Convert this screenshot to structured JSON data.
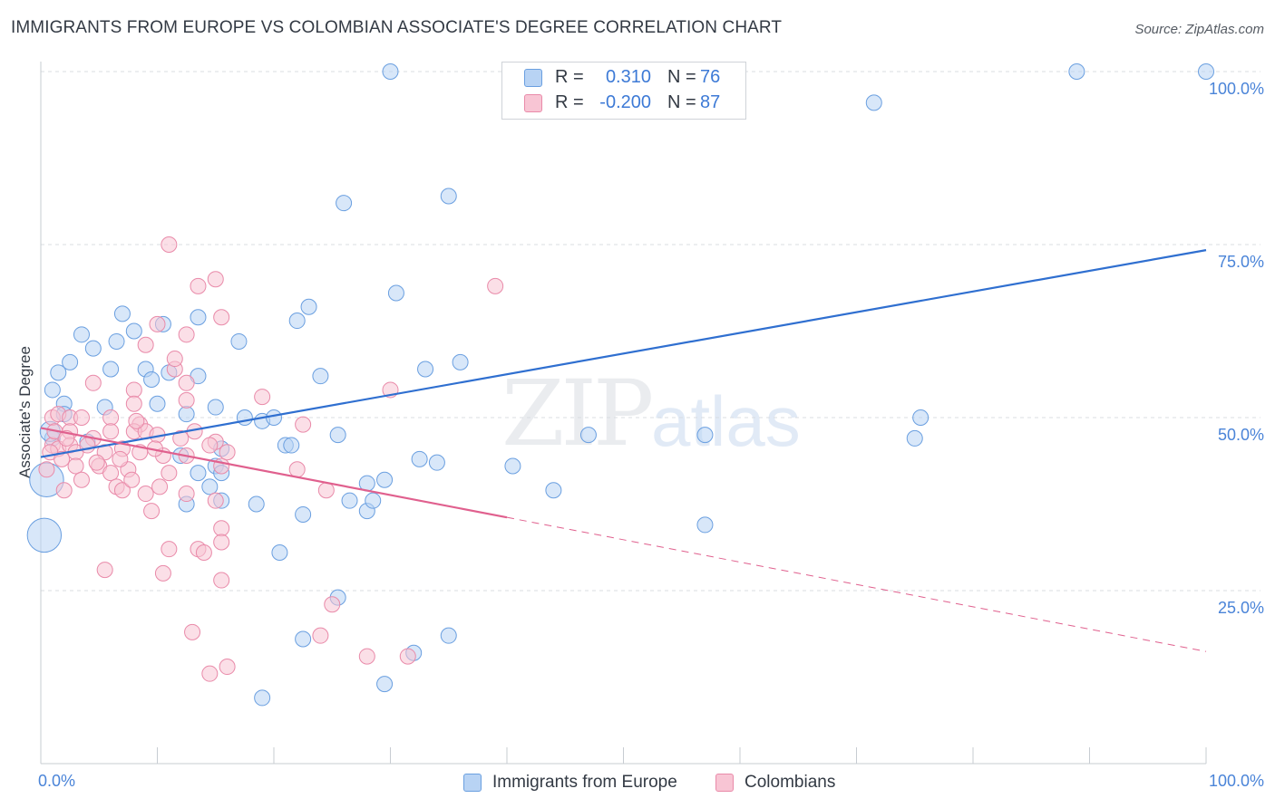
{
  "title": "IMMIGRANTS FROM EUROPE VS COLOMBIAN ASSOCIATE'S DEGREE CORRELATION CHART",
  "source": "Source: ZipAtlas.com",
  "watermark": {
    "zip": "ZIP",
    "atlas": "atlas"
  },
  "legend": {
    "r_label": "R =",
    "n_label": "N =",
    "blue": {
      "r": "0.310",
      "n": "76"
    },
    "pink": {
      "r": "-0.200",
      "n": "87"
    }
  },
  "bottom_legend": {
    "blue": "Immigrants from Europe",
    "pink": "Colombians"
  },
  "colors": {
    "blue_fill": "#b8d3f4",
    "blue_stroke": "#6a9fe0",
    "blue_line": "#2f6fd0",
    "pink_fill": "#f8c5d4",
    "pink_stroke": "#e98aa9",
    "pink_line": "#e0608e",
    "grid": "#d8dce1",
    "tick_text": "#4a84d8"
  },
  "chart_data": {
    "type": "scatter",
    "title": "IMMIGRANTS FROM EUROPE VS COLOMBIAN ASSOCIATE'S DEGREE CORRELATION CHART",
    "xlabel": "",
    "ylabel": "Associate's Degree",
    "xlim": [
      0,
      100
    ],
    "ylim": [
      0,
      100
    ],
    "x_tick_labels": [
      "0.0%",
      "100.0%"
    ],
    "y_tick_labels": [
      "25.0%",
      "50.0%",
      "75.0%",
      "100.0%"
    ],
    "y_ticks": [
      25,
      50,
      75,
      100
    ],
    "series": [
      {
        "name": "Immigrants from Europe",
        "r": 0.31,
        "n": 76,
        "trend": {
          "x0": 0,
          "y0": 44.3,
          "x1": 100,
          "y1": 74.2,
          "dash_from": null
        },
        "points": [
          [
            30,
            100
          ],
          [
            88.9,
            100
          ],
          [
            100,
            100
          ],
          [
            71.5,
            95.5
          ],
          [
            26,
            81
          ],
          [
            35,
            82
          ],
          [
            30.5,
            68
          ],
          [
            23,
            66
          ],
          [
            22,
            64
          ],
          [
            13.5,
            64.5
          ],
          [
            10.5,
            63.5
          ],
          [
            7,
            65
          ],
          [
            8,
            62.5
          ],
          [
            6.5,
            61
          ],
          [
            3.5,
            62
          ],
          [
            4.5,
            60
          ],
          [
            2.5,
            58
          ],
          [
            17,
            61
          ],
          [
            1.5,
            56.5
          ],
          [
            6,
            57
          ],
          [
            9,
            57
          ],
          [
            9.5,
            55.5
          ],
          [
            11,
            56.5
          ],
          [
            13.5,
            56
          ],
          [
            24,
            56
          ],
          [
            33,
            57
          ],
          [
            36,
            58
          ],
          [
            1,
            54
          ],
          [
            2,
            52
          ],
          [
            5.5,
            51.5
          ],
          [
            10,
            52
          ],
          [
            12.5,
            50.5
          ],
          [
            15,
            51.5
          ],
          [
            17.5,
            50
          ],
          [
            19,
            49.5
          ],
          [
            20,
            50
          ],
          [
            21,
            46
          ],
          [
            21.5,
            46
          ],
          [
            25.5,
            47.5
          ],
          [
            47,
            47.5
          ],
          [
            57,
            47.5
          ],
          [
            75,
            47
          ],
          [
            75.5,
            50
          ],
          [
            1,
            47
          ],
          [
            12,
            44.5
          ],
          [
            15.5,
            45.5
          ],
          [
            13.5,
            42
          ],
          [
            15,
            43
          ],
          [
            15.5,
            42
          ],
          [
            32.5,
            44
          ],
          [
            34,
            43.5
          ],
          [
            40.5,
            43
          ],
          [
            14.5,
            40
          ],
          [
            28,
            40.5
          ],
          [
            29.5,
            41
          ],
          [
            44,
            39.5
          ],
          [
            12.5,
            37.5
          ],
          [
            15.5,
            38
          ],
          [
            18.5,
            37.5
          ],
          [
            22.5,
            36
          ],
          [
            26.5,
            38
          ],
          [
            28,
            36.5
          ],
          [
            28.5,
            38
          ],
          [
            57,
            34.5
          ],
          [
            20.5,
            30.5
          ],
          [
            25.5,
            24
          ],
          [
            35,
            18.5
          ],
          [
            22.5,
            18
          ],
          [
            32,
            16
          ],
          [
            29.5,
            11.5
          ],
          [
            19,
            9.5
          ],
          [
            0.5,
            41
          ],
          [
            0.3,
            33
          ],
          [
            0.8,
            48
          ],
          [
            2,
            50.5
          ],
          [
            4,
            46.5
          ]
        ],
        "sizes": [
          1,
          1,
          1,
          1,
          1,
          1,
          1,
          1,
          1,
          1,
          1,
          1,
          1,
          1,
          1,
          1,
          1,
          1,
          1,
          1,
          1,
          1,
          1,
          1,
          1,
          1,
          1,
          1,
          1,
          1,
          1,
          1,
          1,
          1,
          1,
          1,
          1,
          1,
          1,
          1,
          1,
          1,
          1,
          1,
          1,
          1,
          1,
          1,
          1,
          1,
          1,
          1,
          1,
          1,
          1,
          1,
          1,
          1,
          1,
          1,
          1,
          1,
          1,
          1,
          1,
          1,
          1,
          1,
          1,
          1,
          1,
          2.2,
          2.2,
          1.3,
          1,
          1
        ]
      },
      {
        "name": "Colombians",
        "r": -0.2,
        "n": 87,
        "trend": {
          "x0": 0,
          "y0": 48.5,
          "x1": 100,
          "y1": 16.2,
          "dash_from": 40
        },
        "points": [
          [
            11,
            75
          ],
          [
            15,
            70
          ],
          [
            13.5,
            69
          ],
          [
            39,
            69
          ],
          [
            15.5,
            64.5
          ],
          [
            10,
            63.5
          ],
          [
            9,
            60.5
          ],
          [
            12.5,
            62
          ],
          [
            11.5,
            57
          ],
          [
            11.5,
            58.5
          ],
          [
            4.5,
            55
          ],
          [
            12.5,
            55
          ],
          [
            8,
            54
          ],
          [
            19,
            53
          ],
          [
            30,
            54
          ],
          [
            12.5,
            52.5
          ],
          [
            8,
            52
          ],
          [
            1,
            50
          ],
          [
            1.5,
            50.5
          ],
          [
            2.5,
            50
          ],
          [
            3.5,
            50
          ],
          [
            6,
            50
          ],
          [
            8.5,
            49
          ],
          [
            22.5,
            49
          ],
          [
            2.5,
            48
          ],
          [
            4.5,
            47
          ],
          [
            6,
            48
          ],
          [
            8,
            48
          ],
          [
            9,
            48
          ],
          [
            10,
            47.5
          ],
          [
            12,
            47
          ],
          [
            15,
            46.5
          ],
          [
            1,
            46
          ],
          [
            1.5,
            45.5
          ],
          [
            2.5,
            46
          ],
          [
            3,
            45
          ],
          [
            4,
            46
          ],
          [
            5.5,
            45
          ],
          [
            7,
            45.5
          ],
          [
            8.5,
            45
          ],
          [
            10.5,
            44.5
          ],
          [
            12.5,
            44.5
          ],
          [
            3,
            43
          ],
          [
            5,
            43
          ],
          [
            6,
            42
          ],
          [
            7.5,
            42.5
          ],
          [
            11,
            42
          ],
          [
            15.5,
            43
          ],
          [
            22,
            42.5
          ],
          [
            24.5,
            39.5
          ],
          [
            2,
            39.5
          ],
          [
            6.5,
            40
          ],
          [
            7,
            39.5
          ],
          [
            9,
            39
          ],
          [
            12.5,
            39
          ],
          [
            15,
            38
          ],
          [
            9.5,
            36.5
          ],
          [
            15.5,
            34
          ],
          [
            11,
            31
          ],
          [
            13.5,
            31
          ],
          [
            14,
            30.5
          ],
          [
            15.5,
            32
          ],
          [
            5.5,
            28
          ],
          [
            10.5,
            27.5
          ],
          [
            15.5,
            26.5
          ],
          [
            25,
            23
          ],
          [
            13,
            19
          ],
          [
            24,
            18.5
          ],
          [
            28,
            15.5
          ],
          [
            31.5,
            15.5
          ],
          [
            14.5,
            13
          ],
          [
            16,
            14
          ],
          [
            0.5,
            42.5
          ],
          [
            0.8,
            45
          ],
          [
            1.2,
            48
          ],
          [
            1.8,
            44
          ],
          [
            2.2,
            47
          ],
          [
            3.5,
            41
          ],
          [
            4.8,
            43.5
          ],
          [
            6.8,
            44
          ],
          [
            7.8,
            41
          ],
          [
            8.2,
            49.5
          ],
          [
            9.8,
            45.5
          ],
          [
            10.2,
            40
          ],
          [
            13.2,
            48
          ],
          [
            14.5,
            46
          ],
          [
            16,
            45
          ]
        ],
        "sizes": [
          1,
          1,
          1,
          1,
          1,
          1,
          1,
          1,
          1,
          1,
          1,
          1,
          1,
          1,
          1,
          1,
          1,
          1,
          1,
          1,
          1,
          1,
          1,
          1,
          1,
          1,
          1,
          1,
          1,
          1,
          1,
          1,
          1,
          1,
          1,
          1,
          1,
          1,
          1,
          1,
          1,
          1,
          1,
          1,
          1,
          1,
          1,
          1,
          1,
          1,
          1,
          1,
          1,
          1,
          1,
          1,
          1,
          1,
          1,
          1,
          1,
          1,
          1,
          1,
          1,
          1,
          1,
          1,
          1,
          1,
          1,
          1,
          1,
          1,
          1,
          1,
          1,
          1,
          1,
          1,
          1,
          1,
          1,
          1,
          1,
          1,
          1
        ]
      }
    ]
  }
}
